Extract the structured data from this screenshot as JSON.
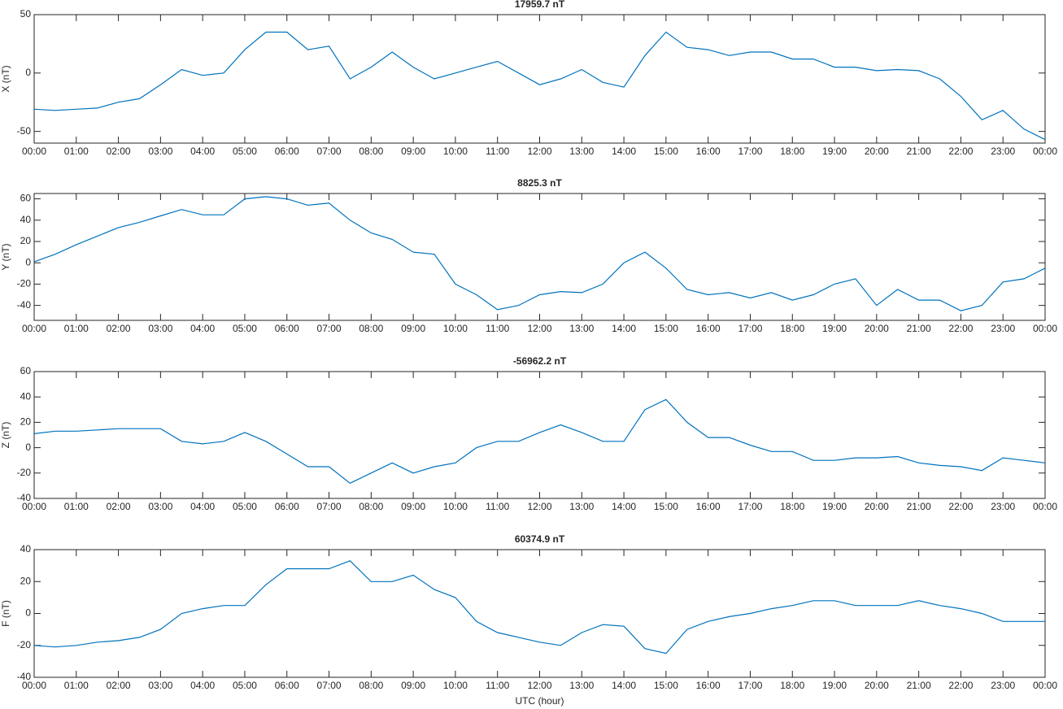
{
  "chart_data": [
    {
      "type": "line",
      "title": "17959.7 nT",
      "y_label": "X (nT)",
      "color": "#0072bd",
      "x": [
        0,
        0.5,
        1,
        1.5,
        2,
        2.5,
        3,
        3.5,
        4,
        4.5,
        5,
        5.5,
        6,
        6.5,
        7,
        7.5,
        8,
        8.5,
        9,
        9.5,
        10,
        10.5,
        11,
        11.5,
        12,
        12.5,
        13,
        13.5,
        14,
        14.5,
        15,
        15.5,
        16,
        16.5,
        17,
        17.5,
        18,
        18.5,
        19,
        19.5,
        20,
        20.5,
        21,
        21.5,
        22,
        22.5,
        23,
        23.5,
        24
      ],
      "values": [
        -31,
        -32,
        -31,
        -30,
        -25,
        -22,
        -10,
        3,
        -2,
        0,
        20,
        35,
        35,
        20,
        23,
        -5,
        5,
        18,
        5,
        -5,
        0,
        5,
        10,
        0,
        -10,
        -5,
        3,
        -8,
        -12,
        15,
        35,
        22,
        20,
        15,
        18,
        18,
        12,
        12,
        5,
        5,
        2,
        3,
        2,
        -5,
        -20,
        -40,
        -32,
        -48,
        -57
      ],
      "xlim": [
        0,
        24
      ],
      "ylim": [
        -60,
        50
      ],
      "yticks": [
        -50,
        0,
        50
      ],
      "xticks": [
        {
          "value": 0,
          "label": "00:00"
        },
        {
          "value": 1,
          "label": "01:00"
        },
        {
          "value": 2,
          "label": "02:00"
        },
        {
          "value": 3,
          "label": "03:00"
        },
        {
          "value": 4,
          "label": "04:00"
        },
        {
          "value": 5,
          "label": "05:00"
        },
        {
          "value": 6,
          "label": "06:00"
        },
        {
          "value": 7,
          "label": "07:00"
        },
        {
          "value": 8,
          "label": "08:00"
        },
        {
          "value": 9,
          "label": "09:00"
        },
        {
          "value": 10,
          "label": "10:00"
        },
        {
          "value": 11,
          "label": "11:00"
        },
        {
          "value": 12,
          "label": "12:00"
        },
        {
          "value": 13,
          "label": "13:00"
        },
        {
          "value": 14,
          "label": "14:00"
        },
        {
          "value": 15,
          "label": "15:00"
        },
        {
          "value": 16,
          "label": "16:00"
        },
        {
          "value": 17,
          "label": "17:00"
        },
        {
          "value": 18,
          "label": "18:00"
        },
        {
          "value": 19,
          "label": "19:00"
        },
        {
          "value": 20,
          "label": "20:00"
        },
        {
          "value": 21,
          "label": "21:00"
        },
        {
          "value": 22,
          "label": "22:00"
        },
        {
          "value": 23,
          "label": "23:00"
        },
        {
          "value": 24,
          "label": "00:00"
        }
      ]
    },
    {
      "type": "line",
      "title": "8825.3 nT",
      "y_label": "Y (nT)",
      "color": "#0072bd",
      "x": [
        0,
        0.5,
        1,
        1.5,
        2,
        2.5,
        3,
        3.5,
        4,
        4.5,
        5,
        5.5,
        6,
        6.5,
        7,
        7.5,
        8,
        8.5,
        9,
        9.5,
        10,
        10.5,
        11,
        11.5,
        12,
        12.5,
        13,
        13.5,
        14,
        14.5,
        15,
        15.5,
        16,
        16.5,
        17,
        17.5,
        18,
        18.5,
        19,
        19.5,
        20,
        20.5,
        21,
        21.5,
        22,
        22.5,
        23,
        23.5,
        24
      ],
      "values": [
        1,
        8,
        17,
        25,
        33,
        38,
        44,
        50,
        45,
        45,
        60,
        62,
        60,
        54,
        56,
        40,
        28,
        22,
        10,
        8,
        -20,
        -30,
        -44,
        -40,
        -30,
        -27,
        -28,
        -20,
        0,
        10,
        -5,
        -25,
        -30,
        -28,
        -33,
        -28,
        -35,
        -30,
        -20,
        -15,
        -40,
        -25,
        -35,
        -35,
        -45,
        -40,
        -18,
        -15,
        -5
      ],
      "xlim": [
        0,
        24
      ],
      "ylim": [
        -54,
        65
      ],
      "yticks": [
        -40,
        -20,
        0,
        20,
        40,
        60
      ],
      "xticks": [
        {
          "value": 0,
          "label": "00:00"
        },
        {
          "value": 1,
          "label": "01:00"
        },
        {
          "value": 2,
          "label": "02:00"
        },
        {
          "value": 3,
          "label": "03:00"
        },
        {
          "value": 4,
          "label": "04:00"
        },
        {
          "value": 5,
          "label": "05:00"
        },
        {
          "value": 6,
          "label": "06:00"
        },
        {
          "value": 7,
          "label": "07:00"
        },
        {
          "value": 8,
          "label": "08:00"
        },
        {
          "value": 9,
          "label": "09:00"
        },
        {
          "value": 10,
          "label": "10:00"
        },
        {
          "value": 11,
          "label": "11:00"
        },
        {
          "value": 12,
          "label": "12:00"
        },
        {
          "value": 13,
          "label": "13:00"
        },
        {
          "value": 14,
          "label": "14:00"
        },
        {
          "value": 15,
          "label": "15:00"
        },
        {
          "value": 16,
          "label": "16:00"
        },
        {
          "value": 17,
          "label": "17:00"
        },
        {
          "value": 18,
          "label": "18:00"
        },
        {
          "value": 19,
          "label": "19:00"
        },
        {
          "value": 20,
          "label": "20:00"
        },
        {
          "value": 21,
          "label": "21:00"
        },
        {
          "value": 22,
          "label": "22:00"
        },
        {
          "value": 23,
          "label": "23:00"
        },
        {
          "value": 24,
          "label": "00:00"
        }
      ]
    },
    {
      "type": "line",
      "title": "-56962.2 nT",
      "y_label": "Z (nT)",
      "color": "#0072bd",
      "x": [
        0,
        0.5,
        1,
        1.5,
        2,
        2.5,
        3,
        3.5,
        4,
        4.5,
        5,
        5.5,
        6,
        6.5,
        7,
        7.5,
        8,
        8.5,
        9,
        9.5,
        10,
        10.5,
        11,
        11.5,
        12,
        12.5,
        13,
        13.5,
        14,
        14.5,
        15,
        15.5,
        16,
        16.5,
        17,
        17.5,
        18,
        18.5,
        19,
        19.5,
        20,
        20.5,
        21,
        21.5,
        22,
        22.5,
        23,
        23.5,
        24
      ],
      "values": [
        11,
        13,
        13,
        14,
        15,
        15,
        15,
        5,
        3,
        5,
        12,
        5,
        -5,
        -15,
        -15,
        -28,
        -20,
        -12,
        -20,
        -15,
        -12,
        0,
        5,
        5,
        12,
        18,
        12,
        5,
        5,
        30,
        38,
        20,
        8,
        8,
        2,
        -3,
        -3,
        -10,
        -10,
        -8,
        -8,
        -7,
        -12,
        -14,
        -15,
        -18,
        -8,
        -10,
        -12
      ],
      "xlim": [
        0,
        24
      ],
      "ylim": [
        -40,
        60
      ],
      "yticks": [
        -40,
        -20,
        0,
        20,
        40,
        60
      ],
      "xticks": [
        {
          "value": 0,
          "label": "00:00"
        },
        {
          "value": 1,
          "label": "01:00"
        },
        {
          "value": 2,
          "label": "02:00"
        },
        {
          "value": 3,
          "label": "03:00"
        },
        {
          "value": 4,
          "label": "04:00"
        },
        {
          "value": 5,
          "label": "05:00"
        },
        {
          "value": 6,
          "label": "06:00"
        },
        {
          "value": 7,
          "label": "07:00"
        },
        {
          "value": 8,
          "label": "08:00"
        },
        {
          "value": 9,
          "label": "09:00"
        },
        {
          "value": 10,
          "label": "10:00"
        },
        {
          "value": 11,
          "label": "11:00"
        },
        {
          "value": 12,
          "label": "12:00"
        },
        {
          "value": 13,
          "label": "13:00"
        },
        {
          "value": 14,
          "label": "14:00"
        },
        {
          "value": 15,
          "label": "15:00"
        },
        {
          "value": 16,
          "label": "16:00"
        },
        {
          "value": 17,
          "label": "17:00"
        },
        {
          "value": 18,
          "label": "18:00"
        },
        {
          "value": 19,
          "label": "19:00"
        },
        {
          "value": 20,
          "label": "20:00"
        },
        {
          "value": 21,
          "label": "21:00"
        },
        {
          "value": 22,
          "label": "22:00"
        },
        {
          "value": 23,
          "label": "23:00"
        },
        {
          "value": 24,
          "label": "00:00"
        }
      ]
    },
    {
      "type": "line",
      "title": "60374.9 nT",
      "y_label": "F (nT)",
      "x_label": "UTC (hour)",
      "color": "#0072bd",
      "x": [
        0,
        0.5,
        1,
        1.5,
        2,
        2.5,
        3,
        3.5,
        4,
        4.5,
        5,
        5.5,
        6,
        6.5,
        7,
        7.5,
        8,
        8.5,
        9,
        9.5,
        10,
        10.5,
        11,
        11.5,
        12,
        12.5,
        13,
        13.5,
        14,
        14.5,
        15,
        15.5,
        16,
        16.5,
        17,
        17.5,
        18,
        18.5,
        19,
        19.5,
        20,
        20.5,
        21,
        21.5,
        22,
        22.5,
        23,
        23.5,
        24
      ],
      "values": [
        -20,
        -21,
        -20,
        -18,
        -17,
        -15,
        -10,
        0,
        3,
        5,
        5,
        18,
        28,
        28,
        28,
        33,
        20,
        20,
        24,
        15,
        10,
        -5,
        -12,
        -15,
        -18,
        -20,
        -12,
        -7,
        -8,
        -22,
        -25,
        -10,
        -5,
        -2,
        0,
        3,
        5,
        8,
        8,
        5,
        5,
        5,
        8,
        5,
        3,
        0,
        -5,
        -5,
        -5
      ],
      "xlim": [
        0,
        24
      ],
      "ylim": [
        -40,
        40
      ],
      "yticks": [
        -40,
        -20,
        0,
        20,
        40
      ],
      "xticks": [
        {
          "value": 0,
          "label": "00:00"
        },
        {
          "value": 1,
          "label": "01:00"
        },
        {
          "value": 2,
          "label": "02:00"
        },
        {
          "value": 3,
          "label": "03:00"
        },
        {
          "value": 4,
          "label": "04:00"
        },
        {
          "value": 5,
          "label": "05:00"
        },
        {
          "value": 6,
          "label": "06:00"
        },
        {
          "value": 7,
          "label": "07:00"
        },
        {
          "value": 8,
          "label": "08:00"
        },
        {
          "value": 9,
          "label": "09:00"
        },
        {
          "value": 10,
          "label": "10:00"
        },
        {
          "value": 11,
          "label": "11:00"
        },
        {
          "value": 12,
          "label": "12:00"
        },
        {
          "value": 13,
          "label": "13:00"
        },
        {
          "value": 14,
          "label": "14:00"
        },
        {
          "value": 15,
          "label": "15:00"
        },
        {
          "value": 16,
          "label": "16:00"
        },
        {
          "value": 17,
          "label": "17:00"
        },
        {
          "value": 18,
          "label": "18:00"
        },
        {
          "value": 19,
          "label": "19:00"
        },
        {
          "value": 20,
          "label": "20:00"
        },
        {
          "value": 21,
          "label": "21:00"
        },
        {
          "value": 22,
          "label": "22:00"
        },
        {
          "value": 23,
          "label": "23:00"
        },
        {
          "value": 24,
          "label": "00:00"
        }
      ]
    }
  ]
}
